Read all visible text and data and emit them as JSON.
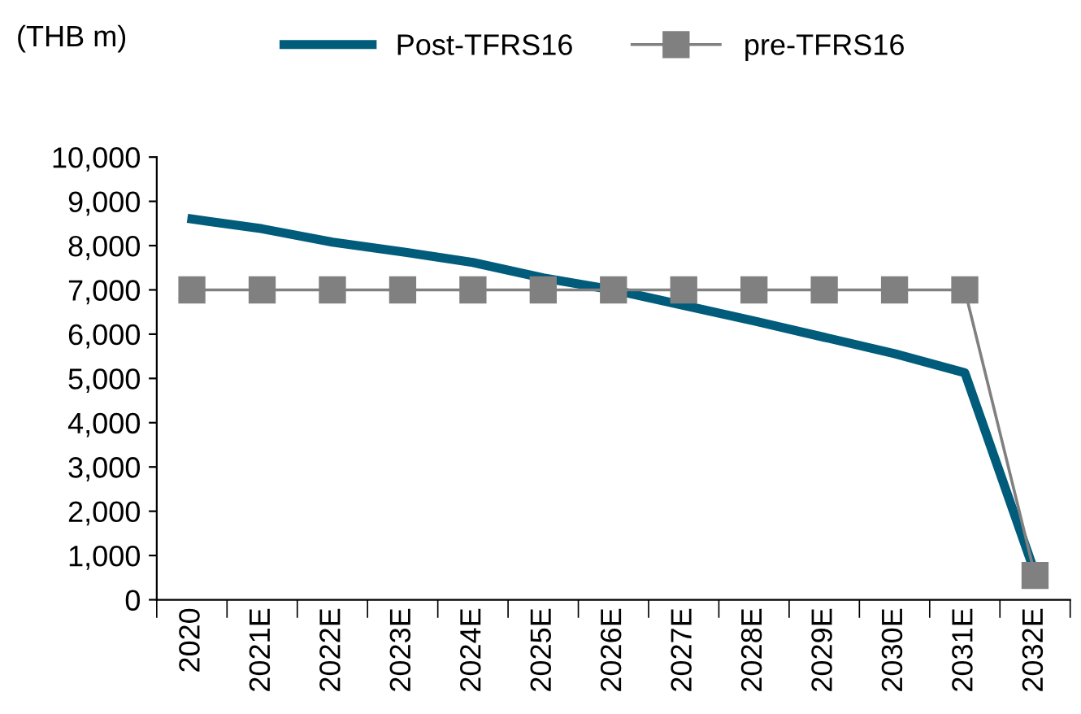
{
  "chart_data": {
    "type": "line",
    "ylabel": "(THB m)",
    "categories": [
      "2020",
      "2021E",
      "2022E",
      "2023E",
      "2024E",
      "2025E",
      "2026E",
      "2027E",
      "2028E",
      "2029E",
      "2030E",
      "2031E",
      "2032E"
    ],
    "series": [
      {
        "name": "Post-TFRS16",
        "color": "#005c7a",
        "marker": "none",
        "values": [
          8600,
          8380,
          8080,
          7860,
          7620,
          7270,
          7000,
          6650,
          6300,
          5930,
          5560,
          5130,
          600
        ]
      },
      {
        "name": "pre-TFRS16",
        "color": "#808080",
        "marker": "square",
        "values": [
          7000,
          7000,
          7000,
          7000,
          7000,
          7000,
          7000,
          7000,
          7000,
          7000,
          7000,
          7000,
          550
        ]
      }
    ],
    "ylim": [
      0,
      10000
    ],
    "yticks": [
      {
        "value": 0,
        "label": "0"
      },
      {
        "value": 1000,
        "label": "1,000"
      },
      {
        "value": 2000,
        "label": "2,000"
      },
      {
        "value": 3000,
        "label": "3,000"
      },
      {
        "value": 4000,
        "label": "4,000"
      },
      {
        "value": 5000,
        "label": "5,000"
      },
      {
        "value": 6000,
        "label": "6,000"
      },
      {
        "value": 7000,
        "label": "7,000"
      },
      {
        "value": 8000,
        "label": "8,000"
      },
      {
        "value": 9000,
        "label": "9,000"
      },
      {
        "value": 10000,
        "label": "10,000"
      }
    ],
    "grid": false,
    "legend": "top"
  }
}
